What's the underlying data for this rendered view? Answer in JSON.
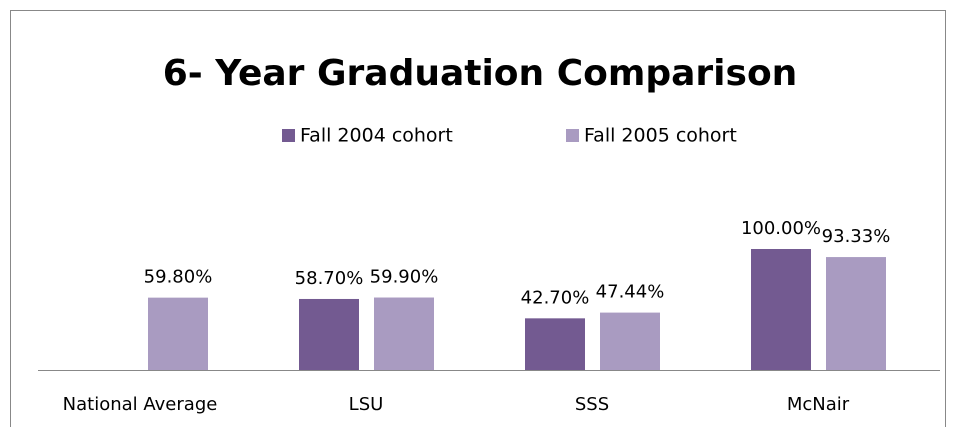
{
  "chart_data": {
    "type": "bar",
    "title": "6- Year Graduation Comparison",
    "categories": [
      "National Average",
      "LSU",
      "SSS",
      "McNair"
    ],
    "series": [
      {
        "name": "Fall 2004 cohort",
        "color": "#735a91",
        "values": [
          null,
          58.7,
          42.7,
          100
        ],
        "value_labels": [
          null,
          "58.70%",
          "42.70%",
          "100.00%"
        ]
      },
      {
        "name": "Fall 2005 cohort",
        "color": "#a99bc1",
        "values": [
          59.8,
          59.9,
          47.44,
          93.33
        ],
        "value_labels": [
          "59.80%",
          "59.90%",
          "47.44%",
          "93.33%"
        ]
      }
    ],
    "legend": "top"
  }
}
